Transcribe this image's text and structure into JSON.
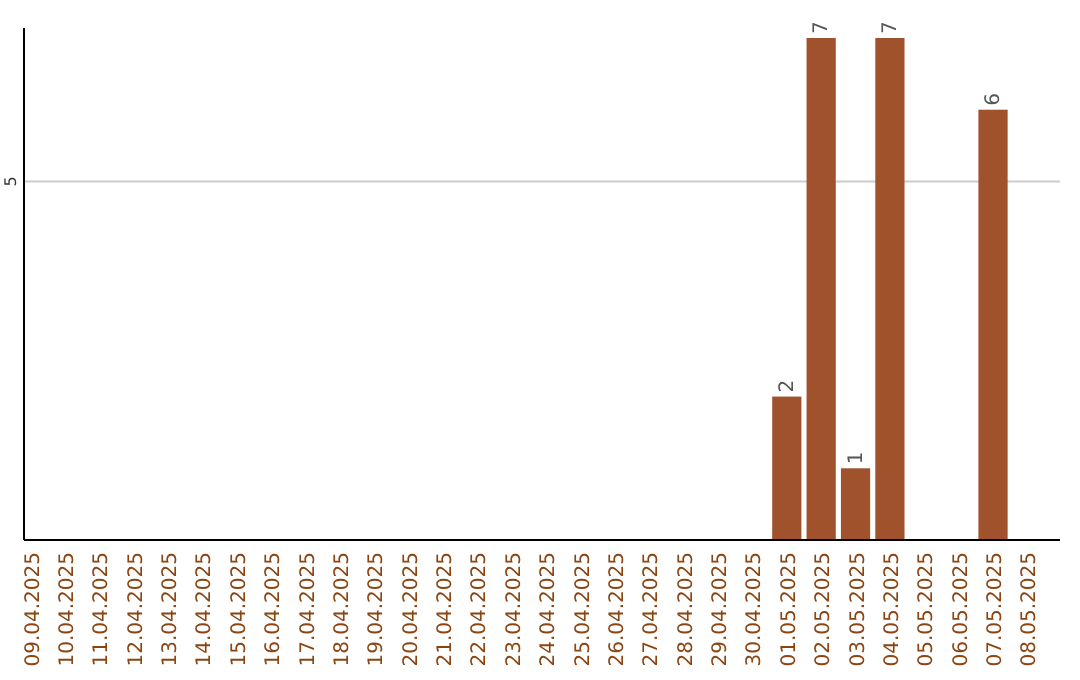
{
  "chart_data": {
    "type": "bar",
    "categories": [
      "09.04.2025",
      "10.04.2025",
      "11.04.2025",
      "12.04.2025",
      "13.04.2025",
      "14.04.2025",
      "15.04.2025",
      "16.04.2025",
      "17.04.2025",
      "18.04.2025",
      "19.04.2025",
      "20.04.2025",
      "21.04.2025",
      "22.04.2025",
      "23.04.2025",
      "24.04.2025",
      "25.04.2025",
      "26.04.2025",
      "27.04.2025",
      "28.04.2025",
      "29.04.2025",
      "30.04.2025",
      "01.05.2025",
      "02.05.2025",
      "03.05.2025",
      "04.05.2025",
      "05.05.2025",
      "06.05.2025",
      "07.05.2025",
      "08.05.2025"
    ],
    "values": [
      null,
      null,
      null,
      null,
      null,
      null,
      null,
      null,
      null,
      null,
      null,
      null,
      null,
      null,
      null,
      null,
      null,
      null,
      null,
      null,
      null,
      null,
      2,
      7,
      1,
      7,
      null,
      null,
      6,
      null
    ],
    "data_labels": true,
    "color": "#a0522d",
    "ylim": [
      0,
      7
    ],
    "yticks": [
      5
    ],
    "grid": "y"
  }
}
